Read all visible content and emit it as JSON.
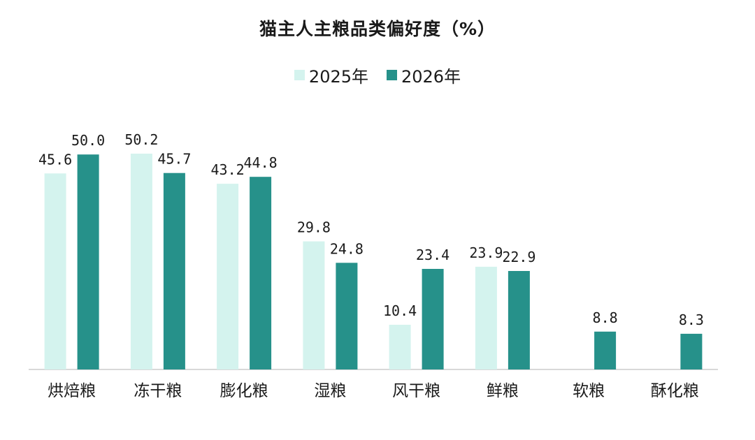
{
  "chart_data": {
    "type": "bar",
    "title": "猫主人主粮品类偏好度（%）",
    "categories": [
      "烘焙粮",
      "冻干粮",
      "膨化粮",
      "湿粮",
      "风干粮",
      "鲜粮",
      "软粮",
      "酥化粮"
    ],
    "series": [
      {
        "name": "2025年",
        "color": "#d4f3ee",
        "values": [
          45.6,
          50.2,
          43.2,
          29.8,
          10.4,
          23.9,
          null,
          null
        ],
        "labels": [
          "45.6",
          "50.2",
          "43.2",
          "29.8",
          "10.4",
          "23.9",
          "",
          ""
        ]
      },
      {
        "name": "2026年",
        "color": "#26918a",
        "values": [
          50.0,
          45.7,
          44.8,
          24.8,
          23.4,
          22.9,
          8.8,
          8.3
        ],
        "labels": [
          "50.0",
          "45.7",
          "44.8",
          "24.8",
          "23.4",
          "22.9",
          "8.8",
          "8.3"
        ]
      }
    ],
    "ylim": [
      0,
      50.2
    ],
    "legend_position": "top-center",
    "grid": false
  }
}
